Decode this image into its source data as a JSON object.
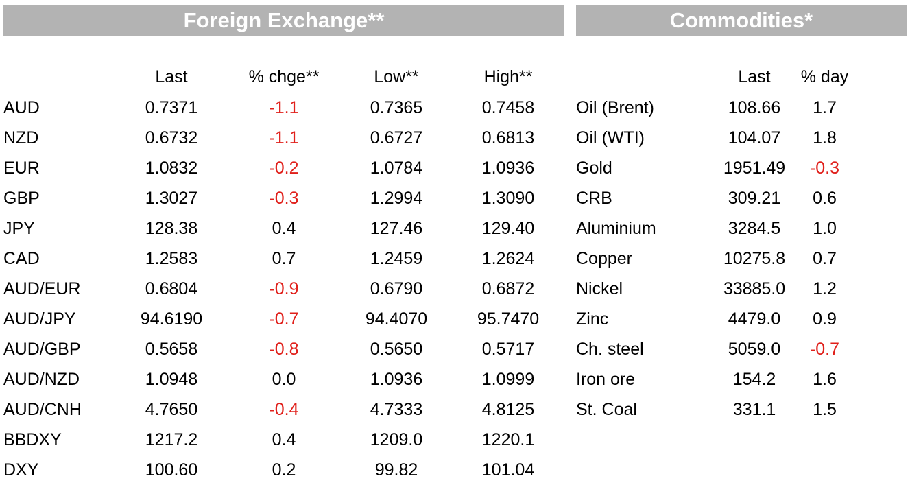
{
  "fx": {
    "title": "Foreign Exchange**",
    "columns": [
      "Last",
      "% chge**",
      "Low**",
      "High**"
    ],
    "rows": [
      {
        "name": "AUD",
        "last": "0.7371",
        "chg": "-1.1",
        "low": "0.7365",
        "high": "0.7458"
      },
      {
        "name": "NZD",
        "last": "0.6732",
        "chg": "-1.1",
        "low": "0.6727",
        "high": "0.6813"
      },
      {
        "name": "EUR",
        "last": "1.0832",
        "chg": "-0.2",
        "low": "1.0784",
        "high": "1.0936"
      },
      {
        "name": "GBP",
        "last": "1.3027",
        "chg": "-0.3",
        "low": "1.2994",
        "high": "1.3090"
      },
      {
        "name": "JPY",
        "last": "128.38",
        "chg": "0.4",
        "low": "127.46",
        "high": "129.40"
      },
      {
        "name": "CAD",
        "last": "1.2583",
        "chg": "0.7",
        "low": "1.2459",
        "high": "1.2624"
      },
      {
        "name": "AUD/EUR",
        "last": "0.6804",
        "chg": "-0.9",
        "low": "0.6790",
        "high": "0.6872"
      },
      {
        "name": "AUD/JPY",
        "last": "94.6190",
        "chg": "-0.7",
        "low": "94.4070",
        "high": "95.7470"
      },
      {
        "name": "AUD/GBP",
        "last": "0.5658",
        "chg": "-0.8",
        "low": "0.5650",
        "high": "0.5717"
      },
      {
        "name": "AUD/NZD",
        "last": "1.0948",
        "chg": "0.0",
        "low": "1.0936",
        "high": "1.0999"
      },
      {
        "name": "AUD/CNH",
        "last": "4.7650",
        "chg": "-0.4",
        "low": "4.7333",
        "high": "4.8125"
      },
      {
        "name": "BBDXY",
        "last": "1217.2",
        "chg": "0.4",
        "low": "1209.0",
        "high": "1220.1"
      },
      {
        "name": "DXY",
        "last": "100.60",
        "chg": "0.2",
        "low": "99.82",
        "high": "101.04"
      }
    ]
  },
  "commodities": {
    "title": "Commodities*",
    "columns": [
      "Last",
      "% day"
    ],
    "rows": [
      {
        "name": "Oil (Brent)",
        "last": "108.66",
        "chg": "1.7"
      },
      {
        "name": "Oil (WTI)",
        "last": "104.07",
        "chg": "1.8"
      },
      {
        "name": "Gold",
        "last": "1951.49",
        "chg": "-0.3"
      },
      {
        "name": "CRB",
        "last": "309.21",
        "chg": "0.6"
      },
      {
        "name": "Aluminium",
        "last": "3284.5",
        "chg": "1.0"
      },
      {
        "name": "Copper",
        "last": "10275.8",
        "chg": "0.7"
      },
      {
        "name": "Nickel",
        "last": "33885.0",
        "chg": "1.2"
      },
      {
        "name": "Zinc",
        "last": "4479.0",
        "chg": "0.9"
      },
      {
        "name": "Ch. steel",
        "last": "5059.0",
        "chg": "-0.7"
      },
      {
        "name": "Iron ore",
        "last": "154.2",
        "chg": "1.6"
      },
      {
        "name": "St. Coal",
        "last": "331.1",
        "chg": "1.5"
      }
    ]
  },
  "colors": {
    "header_bg": "#b3b3b3",
    "header_text": "#ffffff",
    "negative": "#e0201b"
  }
}
